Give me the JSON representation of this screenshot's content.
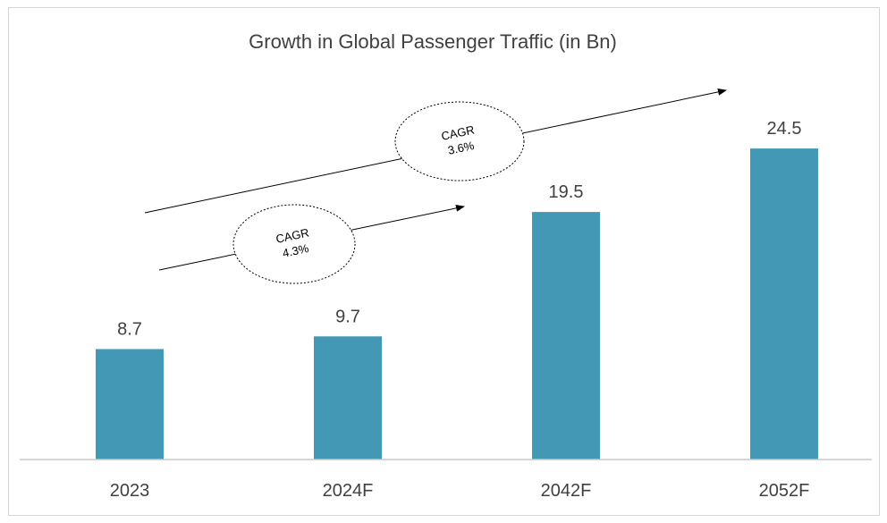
{
  "chart_data": {
    "type": "bar",
    "title": "Growth in Global Passenger Traffic (in Bn)",
    "categories": [
      "2023",
      "2024F",
      "2042F",
      "2052F"
    ],
    "values": [
      8.7,
      9.7,
      19.5,
      24.5
    ],
    "value_labels": [
      "8.7",
      "9.7",
      "19.5",
      "24.5"
    ],
    "xlabel": "",
    "ylabel": "",
    "ylim": [
      0,
      30
    ],
    "grid": false,
    "legend": "none",
    "bar_color": "#4398b5",
    "annotations": [
      {
        "label": "CAGR",
        "value": "4.3%"
      },
      {
        "label": "CAGR",
        "value": "3.6%"
      }
    ]
  }
}
